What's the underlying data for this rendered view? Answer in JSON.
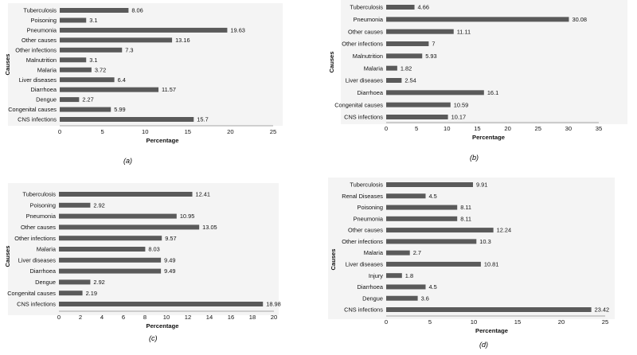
{
  "chart_data": [
    {
      "type": "bar",
      "orientation": "horizontal",
      "caption": "(a)",
      "xlabel": "Percentage",
      "ylabel": "Causes",
      "xlim": [
        0,
        25
      ],
      "xticks": [
        0,
        5,
        10,
        15,
        20,
        25
      ],
      "categories": [
        "Tuberculosis",
        "Poisoning",
        "Pneumonia",
        "Other causes",
        "Other infections",
        "Malnutrition",
        "Malaria",
        "Liver diseases",
        "Diarrhoea",
        "Dengue",
        "Congenital causes",
        "CNS infections"
      ],
      "values": [
        8.06,
        3.1,
        19.63,
        13.16,
        7.3,
        3.1,
        3.72,
        6.4,
        11.57,
        2.27,
        5.99,
        15.7
      ]
    },
    {
      "type": "bar",
      "orientation": "horizontal",
      "caption": "(b)",
      "xlabel": "Percentage",
      "ylabel": "Causes",
      "xlim": [
        0,
        35
      ],
      "xticks": [
        0,
        5,
        10,
        15,
        20,
        25,
        30,
        35
      ],
      "categories": [
        "Tuberculosis",
        "Pneumonia",
        "Other causes",
        "Other infections",
        "Malnutrition",
        "Malaria",
        "Liver diseases",
        "Diarrhoea",
        "Congenital causes",
        "CNS infections"
      ],
      "values": [
        4.66,
        30.08,
        11.11,
        7,
        5.93,
        1.82,
        2.54,
        16.1,
        10.59,
        10.17
      ]
    },
    {
      "type": "bar",
      "orientation": "horizontal",
      "caption": "(c)",
      "xlabel": "Percentage",
      "ylabel": "Causes",
      "xlim": [
        0,
        20
      ],
      "xticks": [
        0,
        2,
        4,
        6,
        8,
        10,
        12,
        14,
        16,
        18,
        20
      ],
      "categories": [
        "Tuberculosis",
        "Poisoning",
        "Pneumonia",
        "Other causes",
        "Other infections",
        "Malaria",
        "Liver diseases",
        "Diarrhoea",
        "Dengue",
        "Congenital causes",
        "CNS infections"
      ],
      "values": [
        12.41,
        2.92,
        10.95,
        13.05,
        9.57,
        8.03,
        9.49,
        9.49,
        2.92,
        2.19,
        18.98
      ]
    },
    {
      "type": "bar",
      "orientation": "horizontal",
      "caption": "(d)",
      "xlabel": "Percentage",
      "ylabel": "Causes",
      "xlim": [
        0,
        25
      ],
      "xticks": [
        0,
        5,
        10,
        15,
        20,
        25
      ],
      "categories": [
        "Tuberculosis",
        "Renal Diseases",
        "Poisoning",
        "Pneumonia",
        "Other causes",
        "Other infections",
        "Malaria",
        "Liver diseases",
        "Injury",
        "Diarrhoea",
        "Dengue",
        "CNS infections"
      ],
      "values": [
        9.91,
        4.5,
        8.11,
        8.11,
        12.24,
        10.3,
        2.7,
        10.81,
        1.8,
        4.5,
        3.6,
        23.42
      ]
    }
  ]
}
